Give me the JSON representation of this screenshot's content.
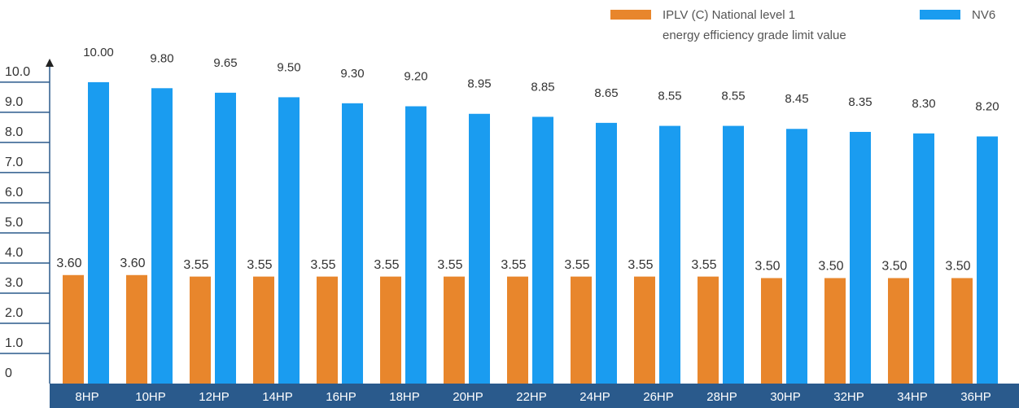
{
  "chart_data": {
    "type": "bar",
    "categories": [
      "8HP",
      "10HP",
      "12HP",
      "14HP",
      "16HP",
      "18HP",
      "20HP",
      "22HP",
      "24HP",
      "26HP",
      "28HP",
      "30HP",
      "32HP",
      "34HP",
      "36HP"
    ],
    "series": [
      {
        "name": "IPLV (C) National level 1\nenergy efficiency grade limit value",
        "color": "#e8862c",
        "values": [
          3.6,
          3.6,
          3.55,
          3.55,
          3.55,
          3.55,
          3.55,
          3.55,
          3.55,
          3.55,
          3.55,
          3.5,
          3.5,
          3.5,
          3.5
        ],
        "value_labels": [
          "3.60",
          "3.60",
          "3.55",
          "3.55",
          "3.55",
          "3.55",
          "3.55",
          "3.55",
          "3.55",
          "3.55",
          "3.55",
          "3.50",
          "3.50",
          "3.50",
          "3.50"
        ]
      },
      {
        "name": "NV6",
        "color": "#1a9cf0",
        "values": [
          10,
          9.8,
          9.65,
          9.5,
          9.3,
          9.2,
          8.95,
          8.85,
          8.65,
          8.55,
          8.55,
          8.45,
          8.35,
          8.3,
          8.2
        ],
        "value_labels": [
          "10.00",
          "9.80",
          "9.65",
          "9.50",
          "9.30",
          "9.20",
          "8.95",
          "8.85",
          "8.65",
          "8.55",
          "8.55",
          "8.45",
          "8.35",
          "8.30",
          "8.20"
        ]
      }
    ],
    "ylim": [
      0,
      10.7
    ],
    "yticks": [
      0,
      {
        "value": 1,
        "label": "1.0"
      },
      {
        "value": 2,
        "label": "2.0"
      },
      {
        "value": 3,
        "label": "3.0"
      },
      {
        "value": 4,
        "label": "4.0"
      },
      {
        "value": 5,
        "label": "5.0"
      },
      {
        "value": 6,
        "label": "6.0"
      },
      {
        "value": 7,
        "label": "7.0"
      },
      {
        "value": 8,
        "label": "8.0"
      },
      {
        "value": 9,
        "label": "9.0"
      },
      {
        "value": 10,
        "label": "10.0"
      }
    ]
  }
}
